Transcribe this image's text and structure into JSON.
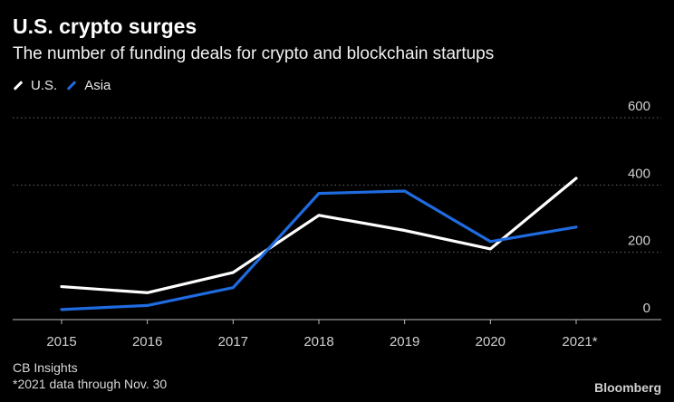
{
  "header": {
    "title": "U.S. crypto surges",
    "subtitle": "The number of funding deals for crypto and blockchain startups"
  },
  "footer": {
    "source": "CB Insights",
    "note": "*2021 data through Nov. 30",
    "brand": "Bloomberg"
  },
  "colors": {
    "background": "#000000",
    "us": "#ffffff",
    "asia": "#1f6be0",
    "grid": "#666666",
    "axis": "#bbbbbb"
  },
  "chart_data": {
    "type": "line",
    "title": "U.S. crypto surges",
    "subtitle": "The number of funding deals for crypto and blockchain startups",
    "xlabel": "",
    "ylabel": "",
    "categories": [
      "2015",
      "2016",
      "2017",
      "2018",
      "2019",
      "2020",
      "2021*"
    ],
    "series": [
      {
        "name": "U.S.",
        "color": "#ffffff",
        "values": [
          98,
          80,
          140,
          310,
          265,
          210,
          420
        ]
      },
      {
        "name": "Asia",
        "color": "#1f6be0",
        "values": [
          30,
          42,
          95,
          375,
          382,
          232,
          275
        ]
      }
    ],
    "ylim": [
      0,
      600
    ],
    "yticks": [
      0,
      200,
      400,
      600
    ],
    "ytick_labels": [
      "0",
      "200",
      "400",
      "600"
    ],
    "y_axis_side": "right",
    "grid": "horizontal dotted",
    "legend_position": "top-left"
  }
}
